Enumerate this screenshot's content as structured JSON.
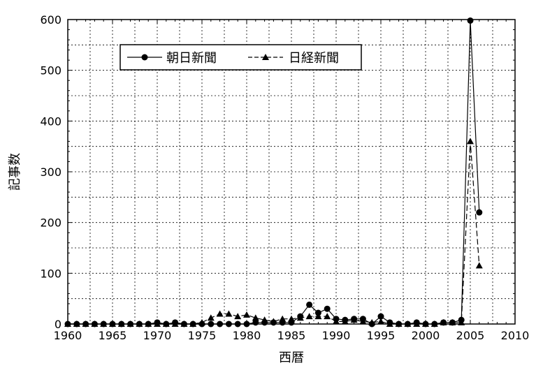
{
  "chart_data": {
    "type": "line",
    "xlabel": "西暦",
    "ylabel": "記事数",
    "xlim": [
      1960,
      2010
    ],
    "ylim": [
      0,
      600
    ],
    "xticks": [
      1960,
      1965,
      1970,
      1975,
      1980,
      1985,
      1990,
      1995,
      2000,
      2005,
      2010
    ],
    "yticks": [
      0,
      100,
      200,
      300,
      400,
      500,
      600
    ],
    "grid": true,
    "legend_position": "top-left",
    "x": [
      1960,
      1961,
      1962,
      1963,
      1964,
      1965,
      1966,
      1967,
      1968,
      1969,
      1970,
      1971,
      1972,
      1973,
      1974,
      1975,
      1976,
      1977,
      1978,
      1979,
      1980,
      1981,
      1982,
      1983,
      1984,
      1985,
      1986,
      1987,
      1988,
      1989,
      1990,
      1991,
      1992,
      1993,
      1994,
      1995,
      1996,
      1997,
      1998,
      1999,
      2000,
      2001,
      2002,
      2003,
      2004,
      2005,
      2006
    ],
    "series": [
      {
        "name": "朝日新聞",
        "marker": "circle",
        "line_style": "solid",
        "color": "#000000",
        "values": [
          0,
          0,
          0,
          0,
          0,
          0,
          0,
          0,
          0,
          0,
          3,
          0,
          3,
          0,
          0,
          0,
          0,
          0,
          0,
          0,
          0,
          3,
          3,
          3,
          3,
          3,
          15,
          38,
          22,
          30,
          10,
          8,
          10,
          10,
          0,
          15,
          3,
          0,
          0,
          3,
          0,
          0,
          3,
          3,
          8,
          598,
          220
        ]
      },
      {
        "name": "日経新聞",
        "marker": "triangle",
        "line_style": "dashed",
        "color": "#000000",
        "values": [
          0,
          0,
          0,
          0,
          0,
          0,
          0,
          0,
          0,
          0,
          0,
          0,
          0,
          0,
          0,
          3,
          12,
          20,
          20,
          15,
          18,
          12,
          8,
          5,
          10,
          10,
          12,
          15,
          15,
          15,
          5,
          5,
          8,
          5,
          3,
          5,
          0,
          0,
          0,
          0,
          0,
          0,
          3,
          3,
          3,
          360,
          115
        ]
      }
    ]
  }
}
